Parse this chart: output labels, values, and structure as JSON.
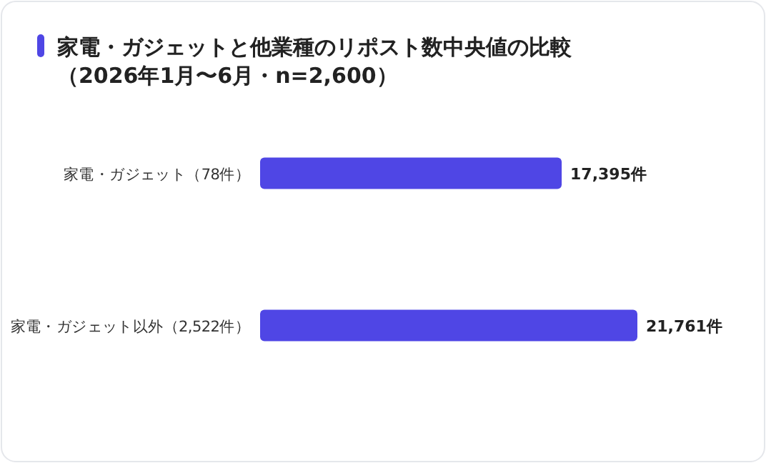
{
  "chart_data": {
    "type": "bar",
    "orientation": "horizontal",
    "title": "家電・ガジェットと他業種のリポスト数中央値の比較",
    "subtitle": "（2026年1月〜6月・n=2,600）",
    "categories": [
      "家電・ガジェット（78件）",
      "家電・ガジェット以外（2,522件）"
    ],
    "values": [
      17395,
      21761
    ],
    "value_labels": [
      "17,395件",
      "21,761件"
    ],
    "color": "#4f46e5"
  }
}
